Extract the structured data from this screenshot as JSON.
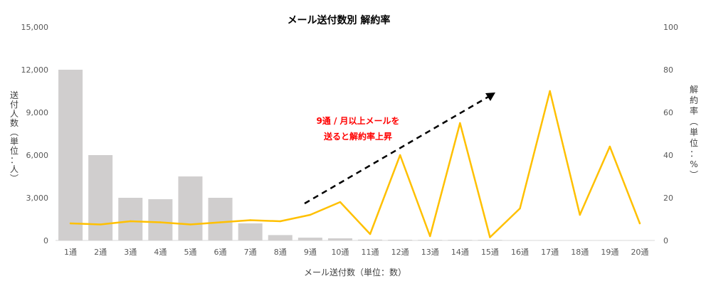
{
  "chart_data": {
    "type": "bar",
    "title": "メール送付数別 解約率",
    "categories": [
      "1通",
      "2通",
      "3通",
      "4通",
      "5通",
      "6通",
      "7通",
      "8通",
      "9通",
      "10通",
      "11通",
      "12通",
      "13通",
      "14通",
      "15通",
      "16通",
      "17通",
      "18通",
      "19通",
      "20通"
    ],
    "series": [
      {
        "name": "送付人数",
        "type": "bar",
        "axis": "left",
        "color": "#d0cece",
        "values": [
          12000,
          6000,
          3000,
          2900,
          4500,
          3000,
          1200,
          380,
          200,
          150,
          60,
          50,
          40,
          40,
          40,
          10,
          5,
          5,
          5,
          5
        ]
      },
      {
        "name": "解約率",
        "type": "line",
        "axis": "right",
        "color": "#ffc000",
        "values": [
          8,
          7.5,
          9,
          8.5,
          7.5,
          8.5,
          9.5,
          9,
          12,
          18,
          3,
          40,
          2,
          55,
          1.5,
          15,
          70,
          12,
          44,
          8
        ]
      }
    ],
    "y_left": {
      "ticks": [
        "0",
        "3,000",
        "6,000",
        "9,000",
        "12,000",
        "15,000"
      ],
      "ylim": [
        0,
        15000
      ],
      "label_chars": [
        "送",
        "付",
        "人",
        "数",
        "︵",
        "単",
        "位",
        "：",
        "人",
        "︶"
      ]
    },
    "y_right": {
      "ticks": [
        "0",
        "20",
        "40",
        "60",
        "80",
        "100"
      ],
      "ylim": [
        0,
        100
      ],
      "label_chars": [
        "解",
        "約",
        "率",
        "︵",
        "単",
        "位",
        "：",
        "%",
        "︶"
      ]
    },
    "xlabel": "メール送付数（単位：数）",
    "annotation": {
      "lines": [
        "9通 / 月以上メールを",
        "送ると解約率上昇"
      ],
      "arrow_color": "#000000",
      "arrow_style": "dashed"
    },
    "grid": false,
    "legend": "none"
  }
}
